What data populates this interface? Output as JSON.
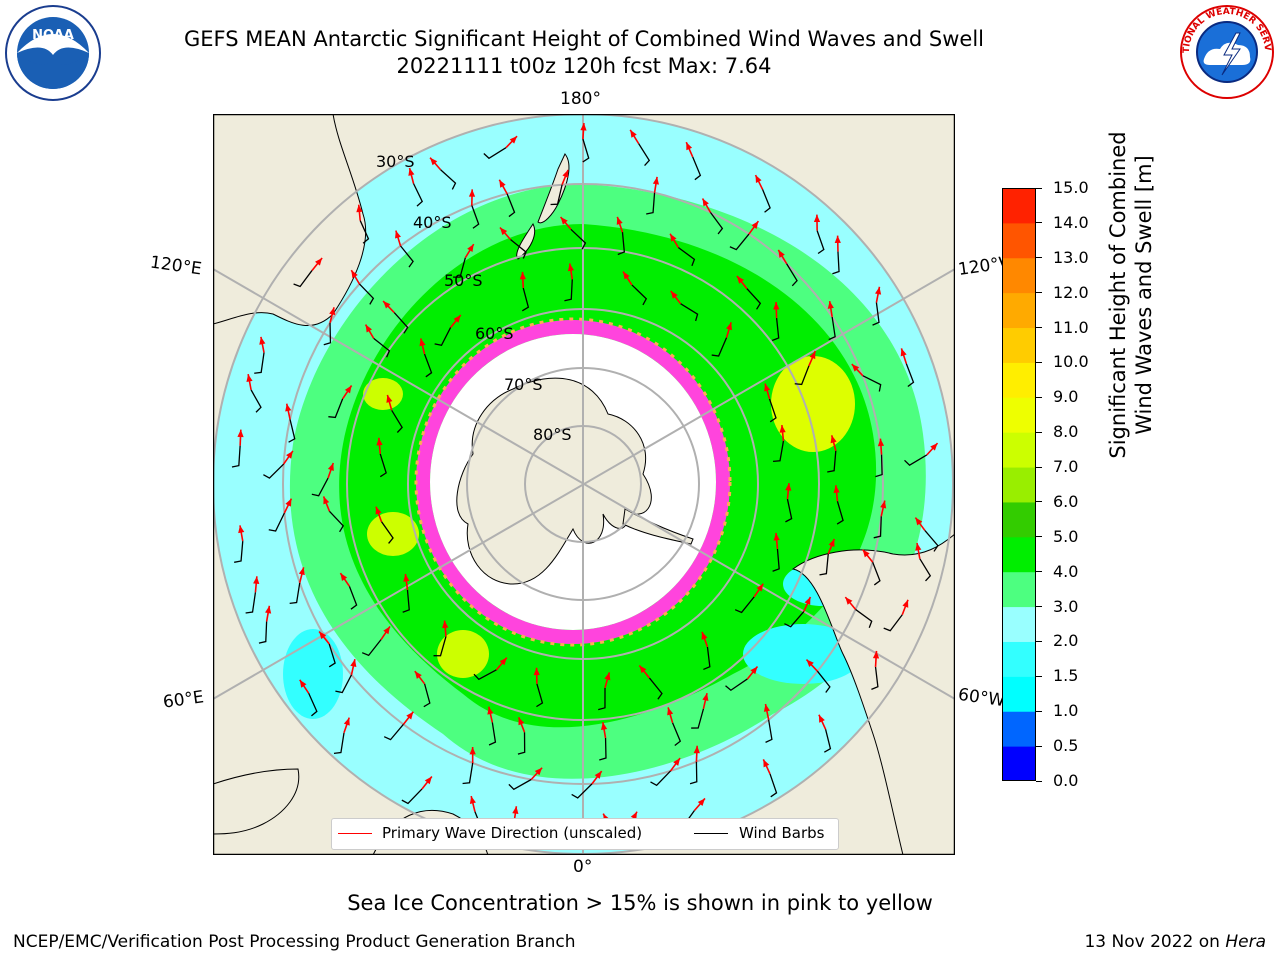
{
  "header": {
    "title_line1": "GEFS MEAN Antarctic Significant Height of Combined Wind Waves and Swell",
    "title_line2": "20221111 t00z 120h fcst   Max: 7.64"
  },
  "map": {
    "longitude_labels": {
      "top": "180°",
      "bottom": "0°",
      "upper_left": "120°E",
      "upper_right": "120°W",
      "lower_left": "60°E",
      "lower_right": "60°W"
    },
    "latitude_labels": [
      "30°S",
      "40°S",
      "50°S",
      "60°S",
      "70°S",
      "80°S"
    ],
    "max_value": 7.64,
    "wave_color": "#ff0000",
    "barb_color": "#000000"
  },
  "colorbar": {
    "title_line1": "Significant Height of Combined",
    "title_line2": "Wind Waves and Swell [m]",
    "ticks": [
      "0.0",
      "0.5",
      "1.0",
      "1.5",
      "2.0",
      "3.0",
      "4.0",
      "5.0",
      "6.0",
      "7.0",
      "8.0",
      "9.0",
      "10.0",
      "11.0",
      "12.0",
      "13.0",
      "14.0",
      "15.0"
    ],
    "colors": [
      "#0000ff",
      "#0066ff",
      "#00ffff",
      "#33ffff",
      "#99ffff",
      "#4dff80",
      "#00ee00",
      "#33cc00",
      "#99ee00",
      "#ccff00",
      "#eeff00",
      "#ffee00",
      "#ffcc00",
      "#ffaa00",
      "#ff8800",
      "#ff5500",
      "#ff2200"
    ]
  },
  "legend": {
    "wave_label": "Primary Wave Direction (unscaled)",
    "barb_label": "Wind Barbs"
  },
  "caption": "Sea Ice Concentration > 15% is shown in pink to yellow",
  "footer": {
    "left": "NCEP/EMC/Verification Post Processing Product Generation Branch",
    "right_date": "13 Nov 2022 on ",
    "right_host": "Hera"
  },
  "logos": {
    "noaa_text": "NOAA",
    "nws_text": "NATIONAL WEATHER SERVICE"
  }
}
